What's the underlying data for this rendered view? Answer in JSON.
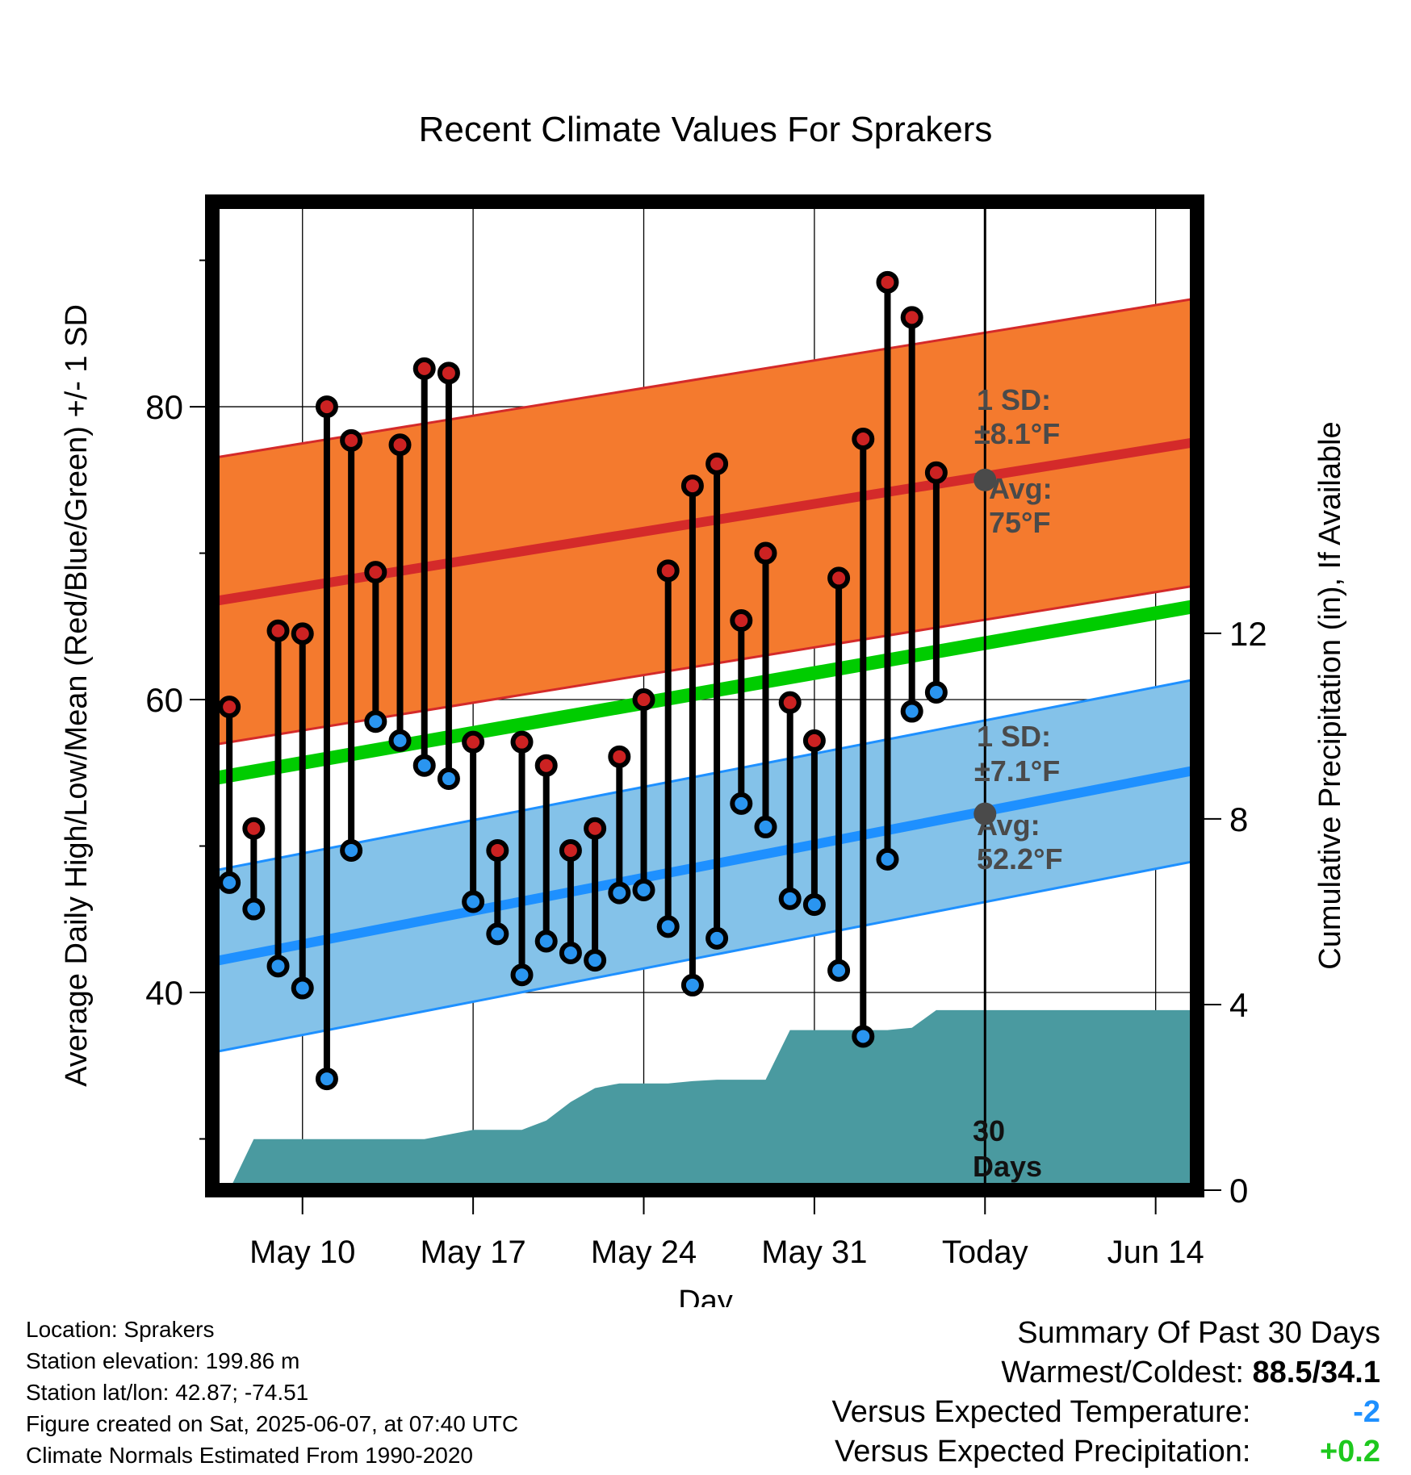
{
  "chart_data": {
    "type": "line",
    "title": "Recent Climate Values For Sprakers",
    "xlabel": "Day",
    "ylabel": "Average Daily High/Low/Mean (Red/Blue/Green) +/- 1 SD",
    "y2label": "Cumulative Precipitation (in), If Available",
    "x_tick_labels": [
      "May 10",
      "May 17",
      "May 24",
      "May 31",
      "Today",
      "Jun 14"
    ],
    "x_tick_days": [
      10,
      17,
      24,
      31,
      38,
      45
    ],
    "xlim": [
      6.3,
      46.7
    ],
    "ylim": [
      26.5,
      94
    ],
    "y_ticks": [
      40,
      60,
      80
    ],
    "y2lim": [
      0,
      21.3
    ],
    "y2_ticks": [
      0,
      4,
      8,
      12
    ],
    "today_day": 38,
    "normals": {
      "high_avg": {
        "start": 66.7,
        "end": 77.6
      },
      "high_sd": 9.8,
      "low_avg": {
        "start": 42.1,
        "end": 55.2
      },
      "low_sd": 6.2,
      "mean": {
        "start": 54.6,
        "end": 66.4
      }
    },
    "days": [
      7,
      8,
      9,
      10,
      11,
      12,
      13,
      14,
      15,
      16,
      17,
      18,
      19,
      20,
      21,
      22,
      23,
      24,
      25,
      26,
      27,
      28,
      29,
      30,
      31,
      32,
      33,
      34,
      35,
      36,
      37
    ],
    "highs": [
      59.5,
      51.2,
      64.7,
      64.5,
      80.0,
      77.7,
      68.7,
      77.4,
      82.6,
      82.3,
      57.1,
      49.7,
      57.1,
      55.5,
      49.7,
      51.2,
      56.1,
      60.0,
      68.8,
      74.6,
      76.1,
      65.4,
      70.0,
      59.8,
      57.2,
      68.3,
      77.8,
      88.5,
      86.1,
      75.5,
      null
    ],
    "lows": [
      47.5,
      45.7,
      41.8,
      40.3,
      34.1,
      49.7,
      58.5,
      57.2,
      55.5,
      54.6,
      46.2,
      44.0,
      41.2,
      43.5,
      42.7,
      42.2,
      46.8,
      47.0,
      44.5,
      40.5,
      43.7,
      52.9,
      51.3,
      46.4,
      46.0,
      41.5,
      37.0,
      49.1,
      59.2,
      60.5,
      null
    ],
    "precip_cum": {
      "days": [
        7,
        8,
        9,
        10,
        11,
        12,
        13,
        14,
        15,
        16,
        17,
        18,
        19,
        20,
        21,
        22,
        23,
        24,
        25,
        26,
        27,
        28,
        29,
        30,
        31,
        32,
        33,
        34,
        35,
        36,
        37,
        38,
        46.7
      ],
      "values": [
        0,
        1.1,
        1.1,
        1.1,
        1.1,
        1.1,
        1.1,
        1.1,
        1.1,
        1.2,
        1.3,
        1.3,
        1.3,
        1.5,
        1.9,
        2.2,
        2.3,
        2.3,
        2.3,
        2.35,
        2.38,
        2.38,
        2.38,
        3.45,
        3.45,
        3.45,
        3.45,
        3.45,
        3.5,
        3.88,
        3.88,
        3.88,
        3.88
      ]
    },
    "annotations": {
      "high_sd_line1": "1 SD:",
      "high_sd_line2": "±8.1°F",
      "high_avg_line1": "Avg:",
      "high_avg_line2": "75°F",
      "high_avg_value": 75,
      "low_sd_line1": "1 SD:",
      "low_sd_line2": "±7.1°F",
      "low_avg_line1": "Avg:",
      "low_avg_line2": "52.2°F",
      "low_avg_value": 52.2,
      "days_line1": "30",
      "days_line2": "Days"
    },
    "colors": {
      "high_band": "#f47a2e",
      "high_line": "#d42a2a",
      "low_band": "#84c2e9",
      "low_line": "#1e90ff",
      "mean_line": "#00cc00",
      "precip": "#4a9aa0",
      "annotation": "#4a4a4a",
      "high_dot": "#cc2222",
      "low_dot": "#2a95f0"
    }
  },
  "info": {
    "location": "Location: Sprakers",
    "elevation": "Station elevation: 199.86 m",
    "latlon": "Station lat/lon: 42.87; -74.51",
    "created": "Figure created on Sat, 2025-06-07, at 07:40 UTC",
    "normals": "Climate Normals Estimated From 1990-2020"
  },
  "summary": {
    "title": "Summary Of Past 30 Days",
    "warm_cold_label": "Warmest/Coldest:",
    "warm_cold_value": "88.5/34.1",
    "temp_label": "Versus Expected Temperature:",
    "temp_value": "-2",
    "precip_label": "Versus Expected Precipitation:",
    "precip_value": "+0.2"
  }
}
